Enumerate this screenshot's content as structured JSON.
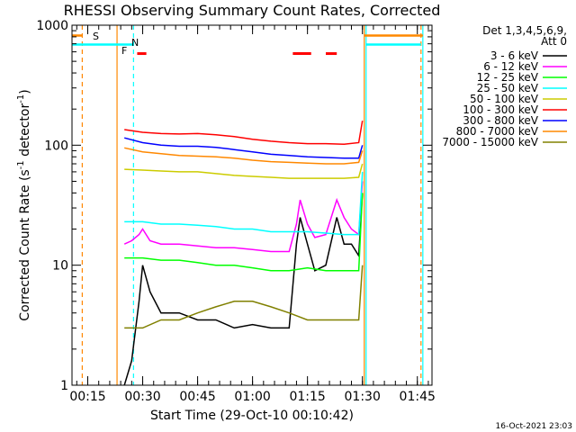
{
  "chart_data": {
    "type": "line",
    "title": "RHESSI Observing Summary Count Rates, Corrected",
    "xlabel": "Start Time (29-Oct-10 00:10:42)",
    "ylabel": "Corrected Count Rate (s",
    "ylabel_sup1": "-1",
    "ylabel_mid": " detector",
    "ylabel_sup2": "-1",
    "ylabel_end": ")",
    "yscale": "log",
    "ylim": [
      1,
      1000
    ],
    "xlim": [
      "00:10:42",
      "01:49:00"
    ],
    "y_ticks": [
      "1",
      "10",
      "100",
      "1000"
    ],
    "x_ticks": [
      "00:15",
      "00:30",
      "00:45",
      "01:00",
      "01:15",
      "01:30",
      "01:45"
    ],
    "legend": {
      "header1": "Det 1,3,4,5,6,9,",
      "header2": "Att 0",
      "position": "right"
    },
    "annotations": {
      "s_label": "S",
      "n_label": "N",
      "f_label": "F"
    },
    "footer": "16-Oct-2021 23:03",
    "series": [
      {
        "name": "3 - 6 keV",
        "color": "#000000",
        "x": [
          "00:25",
          "00:27",
          "00:29",
          "00:30",
          "00:32",
          "00:35",
          "00:40",
          "00:45",
          "00:50",
          "00:55",
          "01:00",
          "01:05",
          "01:10",
          "01:12",
          "01:13",
          "01:15",
          "01:17",
          "01:20",
          "01:23",
          "01:25",
          "01:27",
          "01:29",
          "01:30"
        ],
        "y": [
          1.0,
          1.6,
          5.0,
          10.0,
          6.0,
          4.0,
          4.0,
          3.5,
          3.5,
          3.0,
          3.2,
          3.0,
          3.0,
          15,
          25,
          15,
          9,
          10,
          25,
          15,
          15,
          12,
          40
        ]
      },
      {
        "name": "6 - 12 keV",
        "color": "#ff00ff",
        "x": [
          "00:25",
          "00:27",
          "00:29",
          "00:30",
          "00:32",
          "00:35",
          "00:40",
          "00:45",
          "00:50",
          "00:55",
          "01:00",
          "01:05",
          "01:10",
          "01:12",
          "01:13",
          "01:15",
          "01:17",
          "01:20",
          "01:23",
          "01:25",
          "01:27",
          "01:29",
          "01:30"
        ],
        "y": [
          15,
          16,
          18,
          20,
          16,
          15,
          15,
          14.5,
          14,
          14,
          13.5,
          13,
          13,
          22,
          35,
          22,
          17,
          18,
          35,
          25,
          20,
          18,
          50
        ]
      },
      {
        "name": "12 - 25 keV",
        "color": "#00ff00",
        "x": [
          "00:25",
          "00:30",
          "00:35",
          "00:40",
          "00:45",
          "00:50",
          "00:55",
          "01:00",
          "01:05",
          "01:10",
          "01:15",
          "01:20",
          "01:25",
          "01:29",
          "01:30"
        ],
        "y": [
          11.5,
          11.5,
          11.0,
          11.0,
          10.5,
          10.0,
          10.0,
          9.5,
          9.0,
          9.0,
          9.5,
          9.0,
          9.0,
          9.0,
          40
        ]
      },
      {
        "name": "25 - 50 keV",
        "color": "#00ffff",
        "x": [
          "00:25",
          "00:30",
          "00:35",
          "00:40",
          "00:45",
          "00:50",
          "00:55",
          "01:00",
          "01:05",
          "01:10",
          "01:15",
          "01:20",
          "01:25",
          "01:29",
          "01:30"
        ],
        "y": [
          23,
          23,
          22,
          22,
          21.5,
          21,
          20,
          20,
          19,
          19,
          19,
          18.5,
          18,
          18,
          60
        ]
      },
      {
        "name": "50 - 100 keV",
        "color": "#cccc00",
        "x": [
          "00:25",
          "00:30",
          "00:35",
          "00:40",
          "00:45",
          "00:50",
          "00:55",
          "01:00",
          "01:05",
          "01:10",
          "01:15",
          "01:20",
          "01:25",
          "01:29",
          "01:30"
        ],
        "y": [
          63,
          62,
          61,
          60,
          60,
          58,
          56,
          55,
          54,
          53,
          53,
          53,
          53,
          54,
          70
        ]
      },
      {
        "name": "100 - 300 keV",
        "color": "#ff0000",
        "x": [
          "00:25",
          "00:30",
          "00:35",
          "00:40",
          "00:45",
          "00:50",
          "00:55",
          "01:00",
          "01:05",
          "01:10",
          "01:15",
          "01:20",
          "01:25",
          "01:29",
          "01:30"
        ],
        "y": [
          135,
          128,
          125,
          124,
          125,
          122,
          118,
          112,
          108,
          105,
          103,
          103,
          102,
          105,
          160
        ]
      },
      {
        "name": "300 - 800 keV",
        "color": "#0000ff",
        "x": [
          "00:25",
          "00:30",
          "00:35",
          "00:40",
          "00:45",
          "00:50",
          "00:55",
          "01:00",
          "01:05",
          "01:10",
          "01:15",
          "01:20",
          "01:25",
          "01:29",
          "01:30"
        ],
        "y": [
          115,
          105,
          100,
          98,
          98,
          96,
          92,
          88,
          84,
          82,
          80,
          79,
          78,
          78,
          100
        ]
      },
      {
        "name": "800 - 7000 keV",
        "color": "#ff8800",
        "x": [
          "00:25",
          "00:30",
          "00:35",
          "00:40",
          "00:45",
          "00:50",
          "00:55",
          "01:00",
          "01:05",
          "01:10",
          "01:15",
          "01:20",
          "01:25",
          "01:29",
          "01:30"
        ],
        "y": [
          95,
          88,
          85,
          82,
          81,
          80,
          78,
          75,
          73,
          72,
          71,
          70,
          70,
          72,
          90
        ]
      },
      {
        "name": "7000 - 15000 keV",
        "color": "#808000",
        "x": [
          "00:25",
          "00:30",
          "00:35",
          "00:40",
          "00:45",
          "00:50",
          "00:55",
          "01:00",
          "01:05",
          "01:10",
          "01:15",
          "01:20",
          "01:25",
          "01:29",
          "01:30"
        ],
        "y": [
          3.0,
          3.0,
          3.5,
          3.5,
          4.0,
          4.5,
          5.0,
          5.0,
          4.5,
          4.0,
          3.5,
          3.5,
          3.5,
          3.5,
          10
        ]
      }
    ],
    "bands": [
      {
        "label": "S",
        "color": "#ff8800",
        "y": 820,
        "segments": [
          [
            "00:10:42",
            "00:13:30"
          ],
          [
            "01:30:30",
            "01:46:30"
          ]
        ]
      },
      {
        "label": "N",
        "color": "#00ffff",
        "y": 690,
        "segments": [
          [
            "00:10:42",
            "00:27:30"
          ],
          [
            "01:31:00",
            "01:46:00"
          ]
        ]
      },
      {
        "label": "F",
        "color": "#ff0000",
        "y": 580,
        "segments": [
          [
            "00:28:30",
            "00:31:00"
          ],
          [
            "01:11:00",
            "01:16:00"
          ],
          [
            "01:20:00",
            "01:23:00"
          ]
        ]
      }
    ],
    "vlines": [
      {
        "x": "00:13:30",
        "color": "#ff8800",
        "style": "dashed"
      },
      {
        "x": "00:23:00",
        "color": "#ff8800",
        "style": "solid"
      },
      {
        "x": "00:27:30",
        "color": "#00ffff",
        "style": "dashed"
      },
      {
        "x": "01:30:30",
        "color": "#ff8800",
        "style": "solid"
      },
      {
        "x": "01:31:00",
        "color": "#00ffff",
        "style": "solid"
      },
      {
        "x": "01:46:00",
        "color": "#ff8800",
        "style": "dashed"
      },
      {
        "x": "01:46:30",
        "color": "#00ffff",
        "style": "solid"
      }
    ],
    "grid": false
  }
}
